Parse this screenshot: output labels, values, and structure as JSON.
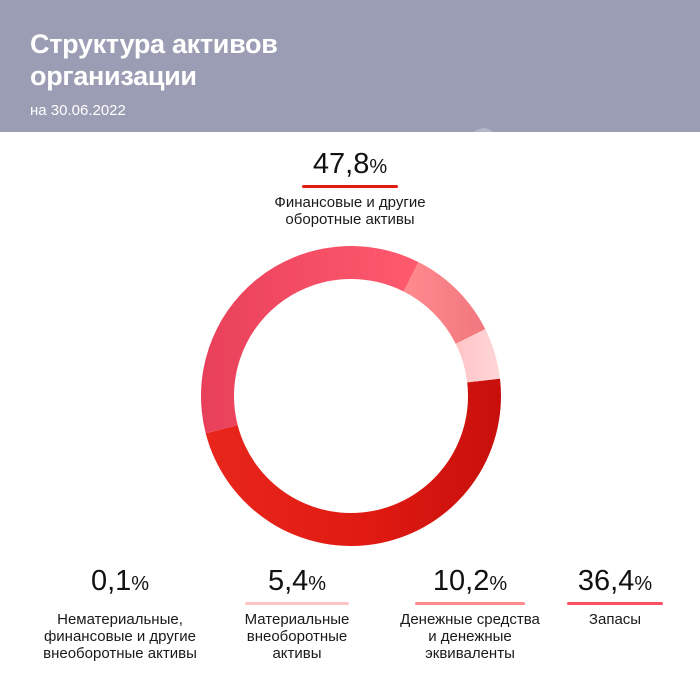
{
  "header": {
    "title": "Структура активов организации",
    "subtitle": "на 30.06.2022"
  },
  "colors": {
    "header_bg": "#9a9db3",
    "red_dark": "#e01a12",
    "red_pink": "#ff4f65",
    "salmon": "#ff8a8e",
    "pale_pink": "#ffc4c6"
  },
  "chart_data": {
    "type": "pie",
    "donut": true,
    "unit": "%",
    "slices": [
      {
        "label": "Финансовые и другие оборотные активы",
        "value": 47.8,
        "display": "47,8",
        "color": "#e01a12"
      },
      {
        "label": "Запасы",
        "value": 36.4,
        "display": "36,4",
        "color": "#ff4f65"
      },
      {
        "label": "Денежные средства и денежные эквиваленты",
        "value": 10.2,
        "display": "10,2",
        "color": "#ff8a8e"
      },
      {
        "label": "Материальные внеоборотные активы",
        "value": 5.4,
        "display": "5,4",
        "color": "#ffc4c6"
      },
      {
        "label": "Нематериальные, финансовые и другие внеоборотные активы",
        "value": 0.1,
        "display": "0,1",
        "color": "#ffc4c6"
      }
    ]
  },
  "callouts": {
    "fin": {
      "value": "47,8",
      "pct": "%",
      "line1": "Финансовые и другие",
      "line2": "оборотные активы"
    },
    "nemat": {
      "value": "0,1",
      "pct": "%",
      "line1": "Нематериальные,",
      "line2": "финансовые и другие",
      "line3": "внеоборотные активы"
    },
    "mat": {
      "value": "5,4",
      "pct": "%",
      "line1": "Материальные",
      "line2": "внеоборотные",
      "line3": "активы"
    },
    "cash": {
      "value": "10,2",
      "pct": "%",
      "line1": "Денежные средства",
      "line2": "и денежные",
      "line3": "эквиваленты"
    },
    "zap": {
      "value": "36,4",
      "pct": "%",
      "line1": "Запасы"
    }
  }
}
